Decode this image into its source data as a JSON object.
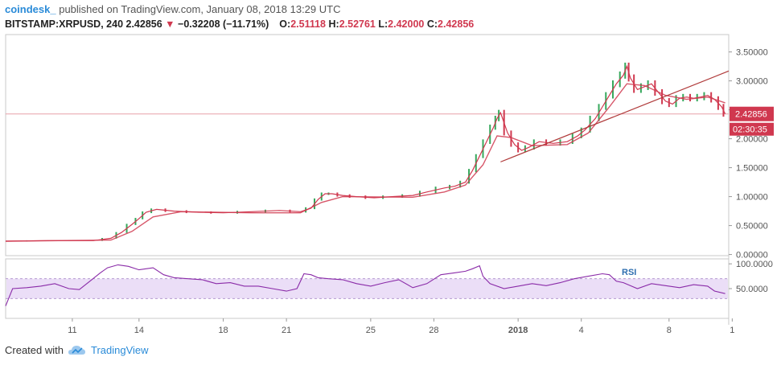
{
  "header": {
    "author": "coindesk_",
    "published": "published on TradingView.com, January 08, 2018 13:29 UTC",
    "symbol": "BITSTAMP:XRPUSD, 240",
    "last": "2.42856",
    "change": "−0.32208 (−11.71%)",
    "o_label": "O:",
    "o_value": "2.51118",
    "h_label": "H:",
    "h_value": "2.52761",
    "l_label": "L:",
    "l_value": "2.42000",
    "c_label": "C:",
    "c_value": "2.42856"
  },
  "footer": {
    "created_with": "Created with",
    "brand": "TradingView"
  },
  "chart_data": {
    "type": "line",
    "main": {
      "y_ticks": [
        "3.50000",
        "3.00000",
        "2.50000",
        "2.00000",
        "1.50000",
        "1.00000",
        "0.50000",
        "0.00000"
      ],
      "y_tick_values": [
        3.5,
        3.0,
        2.5,
        2.0,
        1.5,
        1.0,
        0.5,
        0.0
      ],
      "ylim": [
        -0.02,
        3.8
      ],
      "last_price_tag": "2.42856",
      "countdown_tag": "02:30:35",
      "price_path": [
        [
          0,
          0.23
        ],
        [
          12,
          0.24
        ],
        [
          25,
          0.24
        ],
        [
          30,
          0.28
        ],
        [
          33,
          0.38
        ],
        [
          36,
          0.52
        ],
        [
          38,
          0.62
        ],
        [
          40,
          0.73
        ],
        [
          43,
          0.78
        ],
        [
          48,
          0.75
        ],
        [
          55,
          0.73
        ],
        [
          62,
          0.72
        ],
        [
          70,
          0.74
        ],
        [
          78,
          0.76
        ],
        [
          84,
          0.74
        ],
        [
          87,
          0.8
        ],
        [
          89,
          0.95
        ],
        [
          91,
          1.05
        ],
        [
          93,
          1.05
        ],
        [
          96,
          1.02
        ],
        [
          100,
          1.0
        ],
        [
          105,
          0.98
        ],
        [
          110,
          1.0
        ],
        [
          116,
          1.02
        ],
        [
          120,
          1.08
        ],
        [
          125,
          1.15
        ],
        [
          128,
          1.18
        ],
        [
          131,
          1.25
        ],
        [
          133,
          1.45
        ],
        [
          135,
          1.7
        ],
        [
          137,
          1.95
        ],
        [
          139,
          2.2
        ],
        [
          140,
          2.35
        ],
        [
          141,
          2.45
        ],
        [
          143,
          2.1
        ],
        [
          145,
          1.9
        ],
        [
          147,
          1.8
        ],
        [
          149,
          1.85
        ],
        [
          152,
          1.95
        ],
        [
          156,
          1.92
        ],
        [
          160,
          1.95
        ],
        [
          163,
          2.05
        ],
        [
          165,
          2.15
        ],
        [
          168,
          2.35
        ],
        [
          170,
          2.55
        ],
        [
          172,
          2.75
        ],
        [
          174,
          2.95
        ],
        [
          176,
          3.1
        ],
        [
          177,
          3.25
        ],
        [
          178,
          3.05
        ],
        [
          180,
          2.85
        ],
        [
          182,
          2.9
        ],
        [
          184,
          2.95
        ],
        [
          186,
          2.8
        ],
        [
          188,
          2.65
        ],
        [
          190,
          2.6
        ],
        [
          192,
          2.7
        ],
        [
          194,
          2.72
        ],
        [
          196,
          2.7
        ],
        [
          198,
          2.72
        ],
        [
          200,
          2.75
        ],
        [
          202,
          2.68
        ],
        [
          204,
          2.55
        ],
        [
          205,
          2.43
        ]
      ],
      "ema_path": [
        [
          0,
          0.23
        ],
        [
          30,
          0.25
        ],
        [
          36,
          0.4
        ],
        [
          42,
          0.65
        ],
        [
          50,
          0.74
        ],
        [
          70,
          0.72
        ],
        [
          84,
          0.72
        ],
        [
          90,
          0.9
        ],
        [
          96,
          1.0
        ],
        [
          116,
          0.99
        ],
        [
          125,
          1.08
        ],
        [
          131,
          1.2
        ],
        [
          136,
          1.55
        ],
        [
          140,
          2.05
        ],
        [
          144,
          2.02
        ],
        [
          150,
          1.88
        ],
        [
          160,
          1.9
        ],
        [
          166,
          2.1
        ],
        [
          172,
          2.55
        ],
        [
          177,
          2.95
        ],
        [
          182,
          2.92
        ],
        [
          188,
          2.75
        ],
        [
          194,
          2.68
        ],
        [
          200,
          2.72
        ],
        [
          205,
          2.62
        ]
      ],
      "trendline": [
        [
          141,
          1.6
        ],
        [
          206,
          3.17
        ]
      ],
      "x_range": [
        0,
        206
      ]
    },
    "rsi": {
      "label": "RSI",
      "y_ticks": [
        "100.0000",
        "50.0000"
      ],
      "y_tick_values": [
        100,
        50
      ],
      "ylim": [
        -10,
        110
      ],
      "band": [
        30,
        70
      ],
      "x_range": [
        0,
        206
      ],
      "values": [
        [
          0,
          15
        ],
        [
          2,
          50
        ],
        [
          6,
          52
        ],
        [
          10,
          55
        ],
        [
          14,
          60
        ],
        [
          18,
          50
        ],
        [
          21,
          48
        ],
        [
          24,
          65
        ],
        [
          27,
          82
        ],
        [
          29,
          92
        ],
        [
          32,
          98
        ],
        [
          35,
          95
        ],
        [
          38,
          88
        ],
        [
          42,
          92
        ],
        [
          45,
          78
        ],
        [
          48,
          72
        ],
        [
          52,
          70
        ],
        [
          56,
          68
        ],
        [
          60,
          60
        ],
        [
          64,
          62
        ],
        [
          68,
          55
        ],
        [
          72,
          55
        ],
        [
          76,
          50
        ],
        [
          80,
          45
        ],
        [
          83,
          50
        ],
        [
          85,
          80
        ],
        [
          87,
          78
        ],
        [
          89,
          72
        ],
        [
          92,
          70
        ],
        [
          96,
          68
        ],
        [
          100,
          60
        ],
        [
          104,
          55
        ],
        [
          108,
          62
        ],
        [
          112,
          68
        ],
        [
          116,
          52
        ],
        [
          120,
          60
        ],
        [
          124,
          78
        ],
        [
          128,
          82
        ],
        [
          131,
          85
        ],
        [
          133,
          90
        ],
        [
          135,
          96
        ],
        [
          136,
          75
        ],
        [
          138,
          60
        ],
        [
          142,
          50
        ],
        [
          146,
          55
        ],
        [
          150,
          60
        ],
        [
          154,
          56
        ],
        [
          158,
          62
        ],
        [
          162,
          70
        ],
        [
          166,
          75
        ],
        [
          170,
          80
        ],
        [
          172,
          78
        ],
        [
          174,
          65
        ],
        [
          176,
          62
        ],
        [
          180,
          50
        ],
        [
          184,
          60
        ],
        [
          188,
          56
        ],
        [
          192,
          52
        ],
        [
          196,
          58
        ],
        [
          200,
          55
        ],
        [
          202,
          45
        ],
        [
          205,
          40
        ]
      ]
    },
    "x_ticks": [
      {
        "label": "11",
        "x": 19
      },
      {
        "label": "14",
        "x": 38
      },
      {
        "label": "18",
        "x": 62
      },
      {
        "label": "21",
        "x": 80
      },
      {
        "label": "25",
        "x": 104
      },
      {
        "label": "28",
        "x": 122
      },
      {
        "label": "2018",
        "x": 146
      },
      {
        "label": "4",
        "x": 164
      },
      {
        "label": "8",
        "x": 189
      },
      {
        "label": "1",
        "x": 207
      }
    ],
    "colors": {
      "price": "#d0384f",
      "candle_up": "#36a85c",
      "ema": "#d0384f",
      "trend": "#b03a3a",
      "last_tag_bg": "#d0384f",
      "rsi_line": "#8a2ba8",
      "rsi_band": "#e6d6f5"
    }
  }
}
